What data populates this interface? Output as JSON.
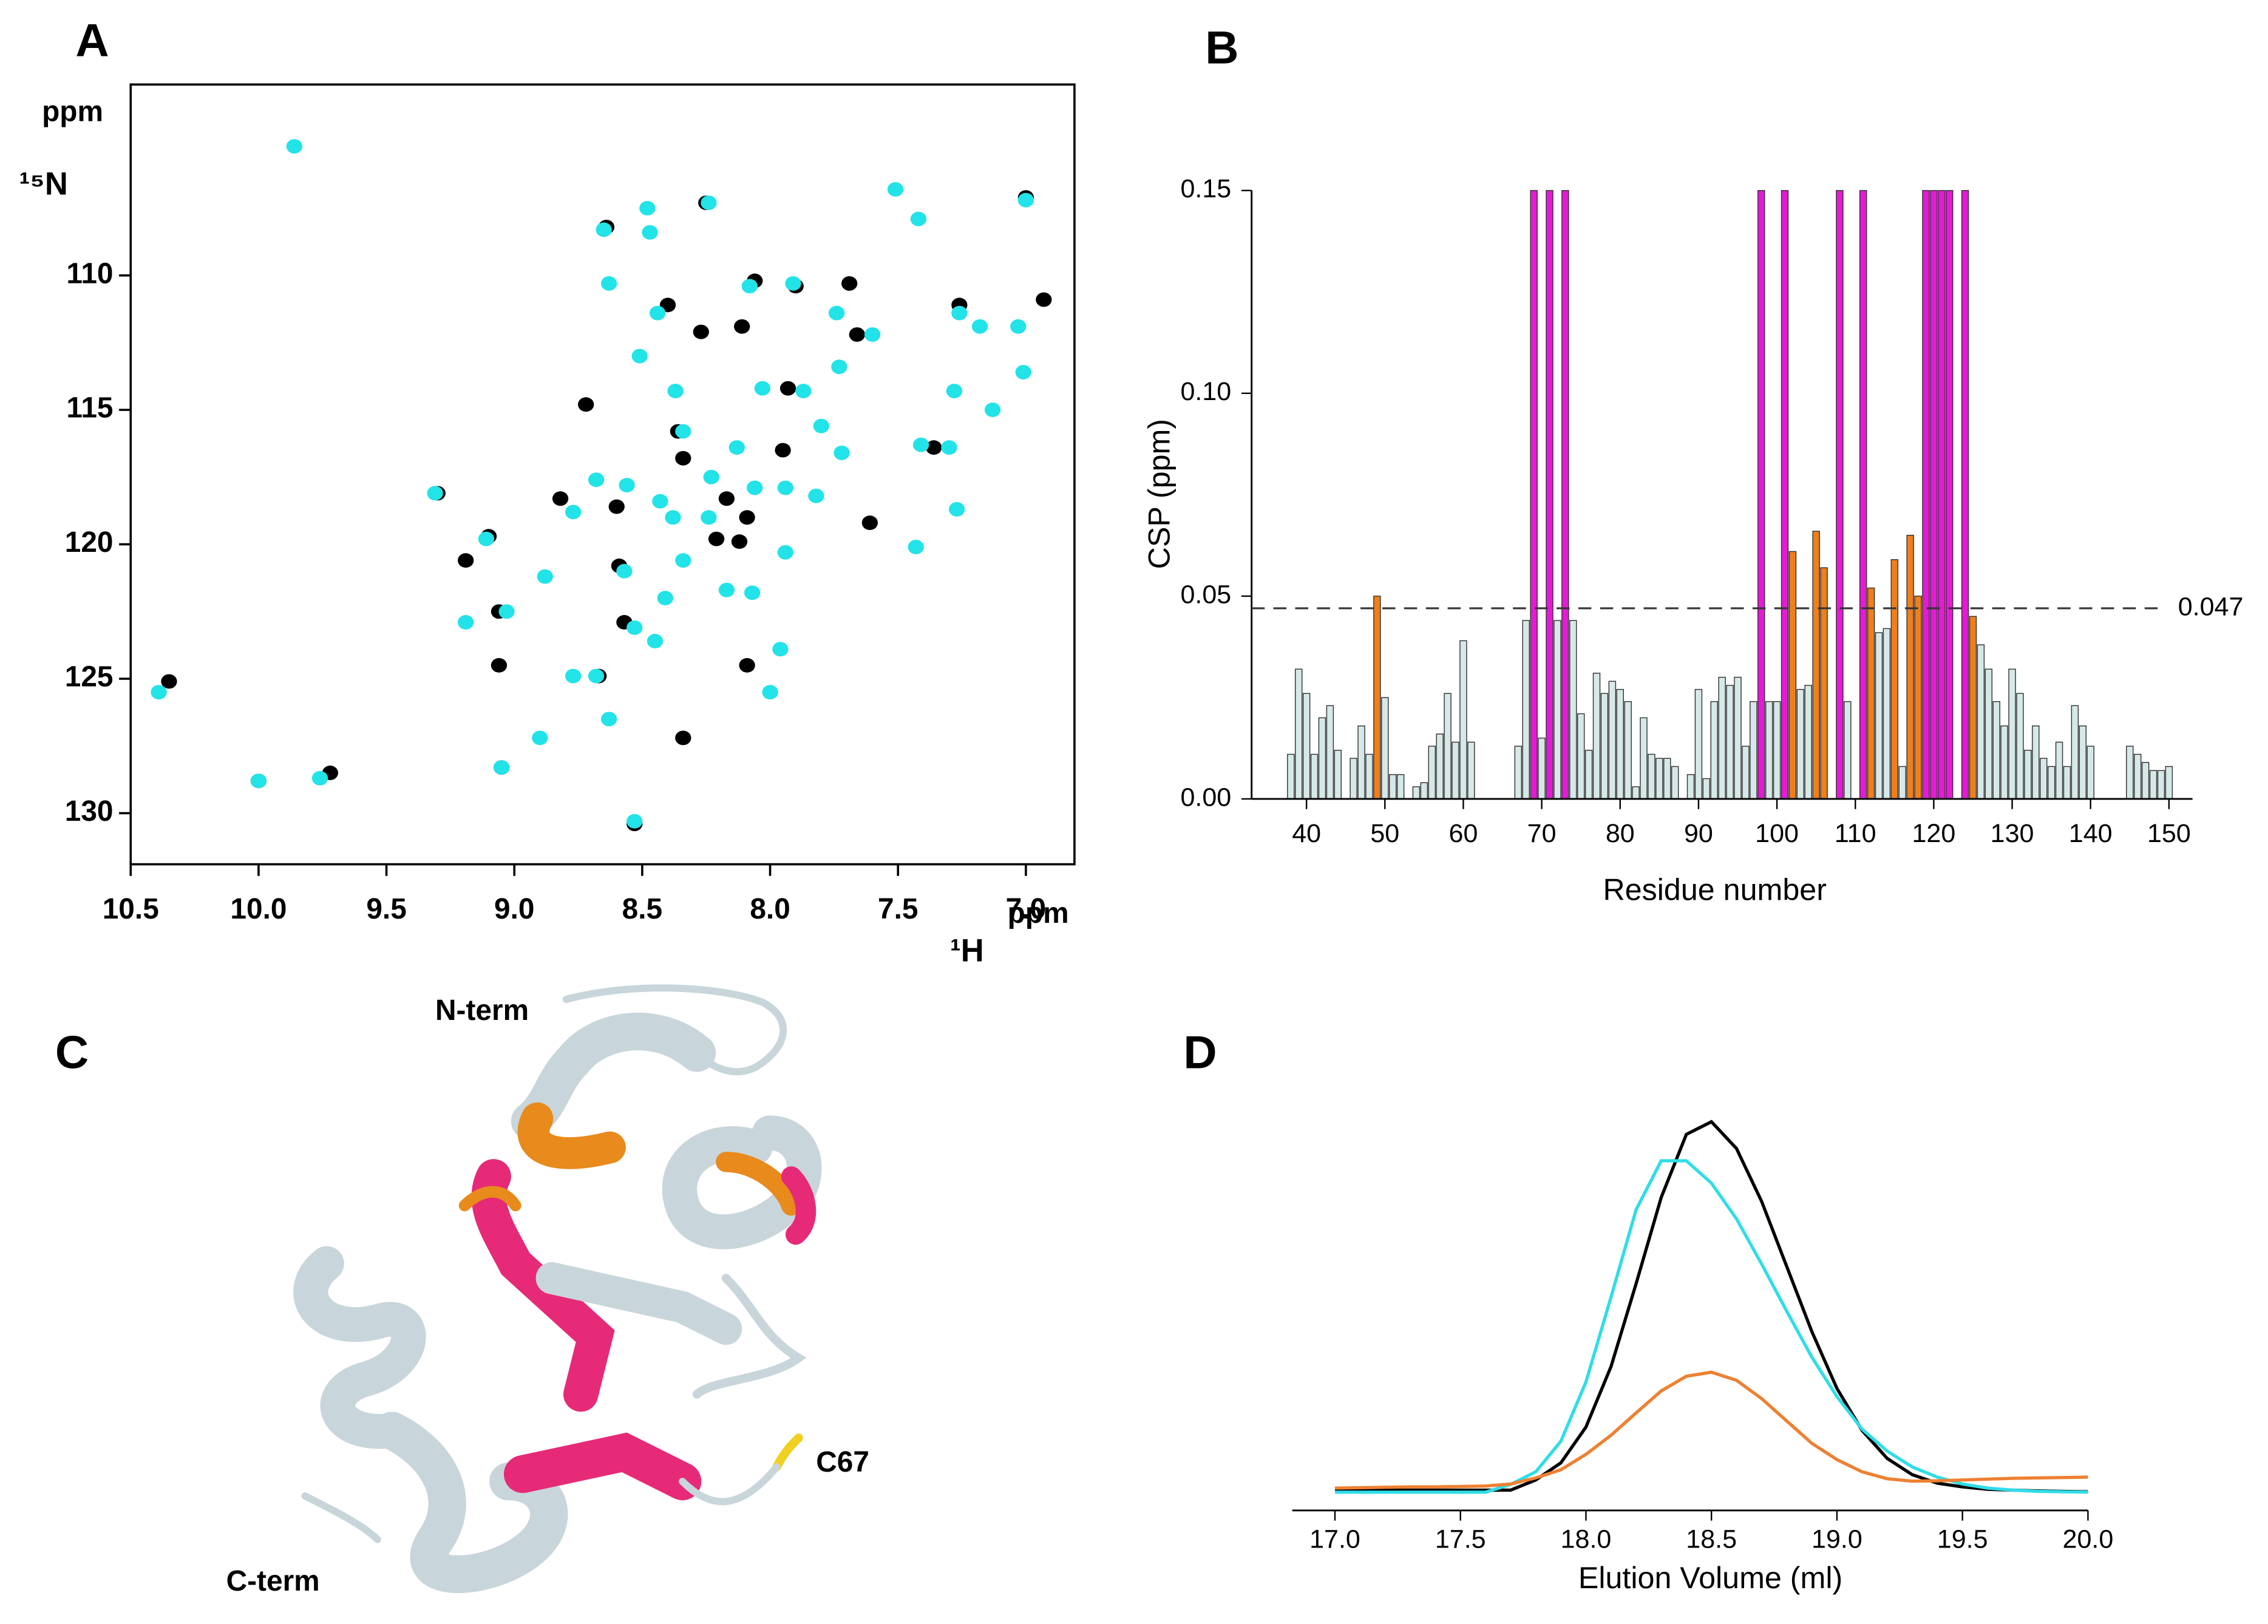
{
  "chart_data": [
    {
      "type": "scatter",
      "panel": "A",
      "xlabel": "ppm",
      "xlabel2": "¹H",
      "ylabel": "ppm",
      "ylabel2": "¹⁵N",
      "xlim": [
        10.5,
        6.81
      ],
      "ylim": [
        131.9,
        102.9
      ],
      "xticks": [
        10.5,
        {
          "value": 10,
          "label": "10.0"
        },
        9.5,
        {
          "value": 9,
          "label": "9.0"
        },
        8.5,
        {
          "value": 8,
          "label": "8.0"
        },
        7.5,
        {
          "value": 7,
          "label": "7.0"
        }
      ],
      "yticks": [
        110,
        115,
        120,
        125,
        130
      ],
      "series": [
        {
          "color": "#000000",
          "x": [
            7.0,
            8.25,
            8.64,
            8.06,
            7.9,
            8.4,
            8.27,
            8.11,
            7.66,
            7.69,
            7.26,
            6.93,
            8.72,
            8.36,
            7.93,
            7.36,
            7.95,
            8.34,
            9.3,
            8.82,
            8.6,
            8.17,
            8.09,
            9.1,
            9.19,
            9.06,
            8.59,
            8.21,
            8.12,
            8.57,
            8.67,
            9.06,
            8.09,
            10.35,
            10.0,
            9.72,
            8.34,
            9.05,
            8.53,
            7.61
          ],
          "y": [
            107.1,
            107.3,
            108.2,
            110.2,
            110.4,
            111.1,
            112.1,
            111.9,
            112.2,
            110.3,
            111.1,
            110.9,
            114.8,
            115.8,
            114.2,
            116.4,
            116.5,
            116.8,
            118.1,
            118.3,
            118.6,
            118.3,
            119.0,
            119.7,
            120.6,
            122.5,
            120.8,
            119.8,
            119.9,
            122.9,
            124.9,
            124.5,
            124.5,
            125.1,
            128.8,
            128.5,
            127.2,
            128.3,
            130.4,
            119.2
          ]
        },
        {
          "color": "#22e3e8",
          "x": [
            9.86,
            7.0,
            7.51,
            7.42,
            8.24,
            8.48,
            8.65,
            8.47,
            8.63,
            8.44,
            8.08,
            7.91,
            7.74,
            7.6,
            7.26,
            7.18,
            7.03,
            8.51,
            8.37,
            8.03,
            7.87,
            7.73,
            7.28,
            7.13,
            7.01,
            7.41,
            7.3,
            7.8,
            8.13,
            8.34,
            8.68,
            8.56,
            8.43,
            8.23,
            8.06,
            7.94,
            7.82,
            7.72,
            8.24,
            8.38,
            8.77,
            9.31,
            9.11,
            8.57,
            8.34,
            8.17,
            7.94,
            8.07,
            9.19,
            9.03,
            8.88,
            8.41,
            8.53,
            8.45,
            8.77,
            8.68,
            8.63,
            7.96,
            8.0,
            10.39,
            9.76,
            10.0,
            9.05,
            8.9,
            8.53,
            7.27,
            7.43
          ],
          "y": [
            105.2,
            107.2,
            106.8,
            107.9,
            107.3,
            107.5,
            108.3,
            108.4,
            110.3,
            111.4,
            110.4,
            110.3,
            111.4,
            112.2,
            111.4,
            111.9,
            111.9,
            113.0,
            114.3,
            114.2,
            114.3,
            113.4,
            114.3,
            115.0,
            113.6,
            116.3,
            116.4,
            115.6,
            116.4,
            115.8,
            117.6,
            117.8,
            118.4,
            117.5,
            117.9,
            117.9,
            118.2,
            116.6,
            119.0,
            119.0,
            118.8,
            118.1,
            119.8,
            121.0,
            120.6,
            121.7,
            120.3,
            121.8,
            122.9,
            122.5,
            121.2,
            122.0,
            123.1,
            123.6,
            124.9,
            124.9,
            126.5,
            123.9,
            125.5,
            125.5,
            128.7,
            128.8,
            128.3,
            127.2,
            130.3,
            118.7,
            120.1
          ]
        }
      ]
    },
    {
      "type": "bar",
      "panel": "B",
      "xlabel": "Residue number",
      "ylabel": "CSP (ppm)",
      "xlim": [
        33,
        153
      ],
      "ylim": [
        0,
        0.15
      ],
      "xticks": [
        40,
        50,
        60,
        70,
        80,
        90,
        100,
        110,
        120,
        130,
        140,
        150
      ],
      "yticks": [
        {
          "value": 0,
          "label": "0.00"
        },
        0.05,
        {
          "value": 0.1,
          "label": "0.10"
        },
        0.15
      ],
      "threshold": 0.047,
      "x": [
        38,
        39,
        40,
        41,
        42,
        43,
        44,
        46,
        47,
        48,
        49,
        50,
        51,
        52,
        54,
        55,
        56,
        57,
        58,
        59,
        60,
        61,
        67,
        68,
        69,
        70,
        71,
        72,
        73,
        74,
        75,
        76,
        77,
        78,
        79,
        80,
        81,
        82,
        83,
        84,
        85,
        86,
        87,
        89,
        90,
        91,
        92,
        93,
        94,
        95,
        96,
        97,
        98,
        99,
        100,
        101,
        102,
        103,
        104,
        105,
        106,
        108,
        109,
        111,
        112,
        113,
        114,
        115,
        116,
        117,
        118,
        119,
        120,
        121,
        122,
        124,
        125,
        126,
        127,
        128,
        129,
        130,
        131,
        132,
        133,
        134,
        135,
        136,
        137,
        138,
        139,
        140,
        145,
        146,
        147,
        148,
        149,
        150
      ],
      "values": [
        0.011,
        0.032,
        0.026,
        0.011,
        0.02,
        0.023,
        0.012,
        0.01,
        0.018,
        0.011,
        0.05,
        0.025,
        0.006,
        0.006,
        0.003,
        0.004,
        0.013,
        0.016,
        0.026,
        0.014,
        0.039,
        0.014,
        0.013,
        0.044,
        0.15,
        0.015,
        0.15,
        0.044,
        0.15,
        0.044,
        0.021,
        0.012,
        0.031,
        0.026,
        0.029,
        0.027,
        0.024,
        0.003,
        0.02,
        0.011,
        0.01,
        0.01,
        0.008,
        0.006,
        0.027,
        0.005,
        0.024,
        0.03,
        0.028,
        0.03,
        0.013,
        0.024,
        0.15,
        0.024,
        0.024,
        0.15,
        0.061,
        0.027,
        0.028,
        0.066,
        0.057,
        0.15,
        0.024,
        0.15,
        0.052,
        0.041,
        0.042,
        0.059,
        0.008,
        0.065,
        0.05,
        0.15,
        0.15,
        0.15,
        0.15,
        0.15,
        0.045,
        0.038,
        0.032,
        0.024,
        0.018,
        0.032,
        0.026,
        0.012,
        0.018,
        0.01,
        0.008,
        0.014,
        0.008,
        0.023,
        0.018,
        0.013,
        0.013,
        0.011,
        0.009,
        0.007,
        0.007,
        0.008
      ],
      "colors": [
        "#d6e8e8",
        "#d6e8e8",
        "#d6e8e8",
        "#d6e8e8",
        "#d6e8e8",
        "#d6e8e8",
        "#d6e8e8",
        "#d6e8e8",
        "#d6e8e8",
        "#d6e8e8",
        "#f07f1a",
        "#d6e8e8",
        "#d6e8e8",
        "#d6e8e8",
        "#d6e8e8",
        "#d6e8e8",
        "#d6e8e8",
        "#d6e8e8",
        "#d6e8e8",
        "#d6e8e8",
        "#d6e8e8",
        "#d6e8e8",
        "#d6e8e8",
        "#d6e8e8",
        "#e619d6",
        "#d6e8e8",
        "#e619d6",
        "#d6e8e8",
        "#e619d6",
        "#d6e8e8",
        "#d6e8e8",
        "#d6e8e8",
        "#d6e8e8",
        "#d6e8e8",
        "#d6e8e8",
        "#d6e8e8",
        "#d6e8e8",
        "#d6e8e8",
        "#d6e8e8",
        "#d6e8e8",
        "#d6e8e8",
        "#d6e8e8",
        "#d6e8e8",
        "#d6e8e8",
        "#d6e8e8",
        "#d6e8e8",
        "#d6e8e8",
        "#d6e8e8",
        "#d6e8e8",
        "#d6e8e8",
        "#d6e8e8",
        "#d6e8e8",
        "#e619d6",
        "#d6e8e8",
        "#d6e8e8",
        "#e619d6",
        "#f07f1a",
        "#d6e8e8",
        "#d6e8e8",
        "#f07f1a",
        "#f07f1a",
        "#e619d6",
        "#d6e8e8",
        "#e619d6",
        "#f07f1a",
        "#d6e8e8",
        "#d6e8e8",
        "#f07f1a",
        "#d6e8e8",
        "#f07f1a",
        "#f07f1a",
        "#e619d6",
        "#e619d6",
        "#e619d6",
        "#e619d6",
        "#e619d6",
        "#f07f1a",
        "#d6e8e8",
        "#d6e8e8",
        "#d6e8e8",
        "#d6e8e8",
        "#d6e8e8",
        "#d6e8e8",
        "#d6e8e8",
        "#d6e8e8",
        "#d6e8e8",
        "#d6e8e8",
        "#d6e8e8",
        "#d6e8e8",
        "#d6e8e8",
        "#d6e8e8",
        "#d6e8e8",
        "#d6e8e8",
        "#d6e8e8",
        "#d6e8e8",
        "#d6e8e8",
        "#d6e8e8",
        "#d6e8e8"
      ]
    },
    {
      "type": "line",
      "panel": "D",
      "xlabel": "Elution Volume (ml)",
      "xlim": [
        16.83,
        20.0
      ],
      "ylim": [
        0,
        1
      ],
      "xticks": [
        {
          "value": 17,
          "label": "17.0"
        },
        17.5,
        {
          "value": 18,
          "label": "18.0"
        },
        18.5,
        {
          "value": 19,
          "label": "19.0"
        },
        19.5,
        {
          "value": 20,
          "label": "20.0"
        }
      ],
      "x": [
        17.0,
        17.1,
        17.2,
        17.3,
        17.4,
        17.5,
        17.6,
        17.7,
        17.8,
        17.9,
        18.0,
        18.1,
        18.2,
        18.3,
        18.4,
        18.5,
        18.6,
        18.7,
        18.8,
        18.9,
        19.0,
        19.1,
        19.2,
        19.3,
        19.4,
        19.5,
        19.6,
        19.7,
        19.8,
        19.9,
        20.0
      ],
      "series": [
        {
          "color": "#000000",
          "values": [
            0.05,
            0.05,
            0.05,
            0.05,
            0.05,
            0.05,
            0.05,
            0.05,
            0.075,
            0.117,
            0.205,
            0.354,
            0.558,
            0.77,
            0.925,
            0.956,
            0.89,
            0.76,
            0.6,
            0.44,
            0.3,
            0.197,
            0.128,
            0.088,
            0.067,
            0.058,
            0.052,
            0.05,
            0.048,
            0.047,
            0.046
          ]
        },
        {
          "color": "#2fdde6",
          "values": [
            0.045,
            0.045,
            0.045,
            0.045,
            0.045,
            0.045,
            0.045,
            0.064,
            0.095,
            0.17,
            0.316,
            0.525,
            0.74,
            0.86,
            0.86,
            0.805,
            0.717,
            0.606,
            0.49,
            0.377,
            0.28,
            0.2,
            0.146,
            0.107,
            0.082,
            0.065,
            0.055,
            0.05,
            0.047,
            0.046,
            0.045
          ]
        },
        {
          "color": "#ee8032",
          "values": [
            0.055,
            0.056,
            0.057,
            0.058,
            0.058,
            0.059,
            0.06,
            0.065,
            0.08,
            0.1,
            0.138,
            0.185,
            0.24,
            0.294,
            0.33,
            0.34,
            0.32,
            0.275,
            0.22,
            0.165,
            0.125,
            0.095,
            0.078,
            0.072,
            0.073,
            0.075,
            0.077,
            0.079,
            0.08,
            0.081,
            0.082
          ]
        }
      ]
    }
  ],
  "structure": {
    "panel": "C",
    "labels": [
      "N-term",
      "C67",
      "C-term"
    ]
  }
}
